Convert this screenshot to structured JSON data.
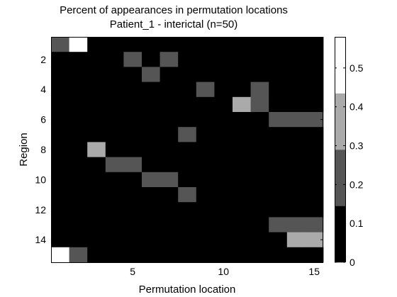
{
  "chart_data": {
    "type": "heatmap",
    "title": "Percent of appearances in permutation locations",
    "subtitle": "Patient_1 - interictal (n=50)",
    "xlabel": "Permutation location",
    "ylabel": "Region",
    "x": [
      1,
      2,
      3,
      4,
      5,
      6,
      7,
      8,
      9,
      10,
      11,
      12,
      13,
      14,
      15
    ],
    "y": [
      1,
      2,
      3,
      4,
      5,
      6,
      7,
      8,
      9,
      10,
      11,
      12,
      13,
      14,
      15
    ],
    "x_ticks": [
      5,
      10,
      15
    ],
    "y_ticks": [
      2,
      4,
      6,
      8,
      10,
      12,
      14
    ],
    "xlim": [
      0.5,
      15.5
    ],
    "ylim": [
      0.5,
      15.5
    ],
    "y_reversed": true,
    "values": [
      [
        0.2,
        0.6,
        0,
        0,
        0,
        0,
        0,
        0,
        0,
        0,
        0,
        0,
        0,
        0,
        0
      ],
      [
        0,
        0,
        0,
        0,
        0.2,
        0,
        0.2,
        0,
        0,
        0,
        0,
        0,
        0,
        0,
        0
      ],
      [
        0,
        0,
        0,
        0,
        0,
        0.2,
        0,
        0,
        0,
        0,
        0,
        0,
        0,
        0,
        0
      ],
      [
        0,
        0,
        0,
        0,
        0,
        0,
        0,
        0,
        0.2,
        0,
        0,
        0.2,
        0,
        0,
        0
      ],
      [
        0,
        0,
        0,
        0,
        0,
        0,
        0,
        0,
        0,
        0,
        0.3,
        0.2,
        0,
        0,
        0
      ],
      [
        0,
        0,
        0,
        0,
        0,
        0,
        0,
        0,
        0,
        0,
        0,
        0,
        0.2,
        0.2,
        0.2
      ],
      [
        0,
        0,
        0,
        0,
        0,
        0,
        0,
        0.2,
        0,
        0,
        0,
        0,
        0,
        0,
        0
      ],
      [
        0,
        0,
        0.3,
        0,
        0,
        0,
        0,
        0,
        0,
        0,
        0,
        0,
        0,
        0,
        0
      ],
      [
        0,
        0,
        0,
        0.2,
        0.2,
        0,
        0,
        0,
        0,
        0,
        0,
        0,
        0,
        0,
        0
      ],
      [
        0,
        0,
        0,
        0,
        0,
        0.2,
        0.2,
        0,
        0,
        0,
        0,
        0,
        0,
        0,
        0
      ],
      [
        0,
        0,
        0,
        0,
        0,
        0,
        0,
        0.2,
        0,
        0,
        0,
        0,
        0,
        0,
        0
      ],
      [
        0,
        0,
        0,
        0,
        0,
        0,
        0,
        0,
        0,
        0,
        0,
        0,
        0,
        0,
        0
      ],
      [
        0,
        0,
        0,
        0,
        0,
        0,
        0,
        0,
        0,
        0,
        0,
        0,
        0.2,
        0.2,
        0.2
      ],
      [
        0,
        0,
        0,
        0,
        0,
        0,
        0,
        0,
        0,
        0,
        0,
        0,
        0,
        0.3,
        0.3
      ],
      [
        0.6,
        0.2,
        0,
        0,
        0,
        0,
        0,
        0,
        0,
        0,
        0,
        0,
        0,
        0,
        0
      ]
    ],
    "colorbar": {
      "range": [
        0,
        0.58
      ],
      "ticks": [
        0,
        0.1,
        0.2,
        0.3,
        0.4,
        0.5
      ],
      "levels": [
        {
          "from": 0,
          "to": 0.145,
          "color": "#000000"
        },
        {
          "from": 0.145,
          "to": 0.29,
          "color": "#555555"
        },
        {
          "from": 0.29,
          "to": 0.435,
          "color": "#aaaaaa"
        },
        {
          "from": 0.435,
          "to": 0.58,
          "color": "#ffffff"
        }
      ]
    }
  }
}
